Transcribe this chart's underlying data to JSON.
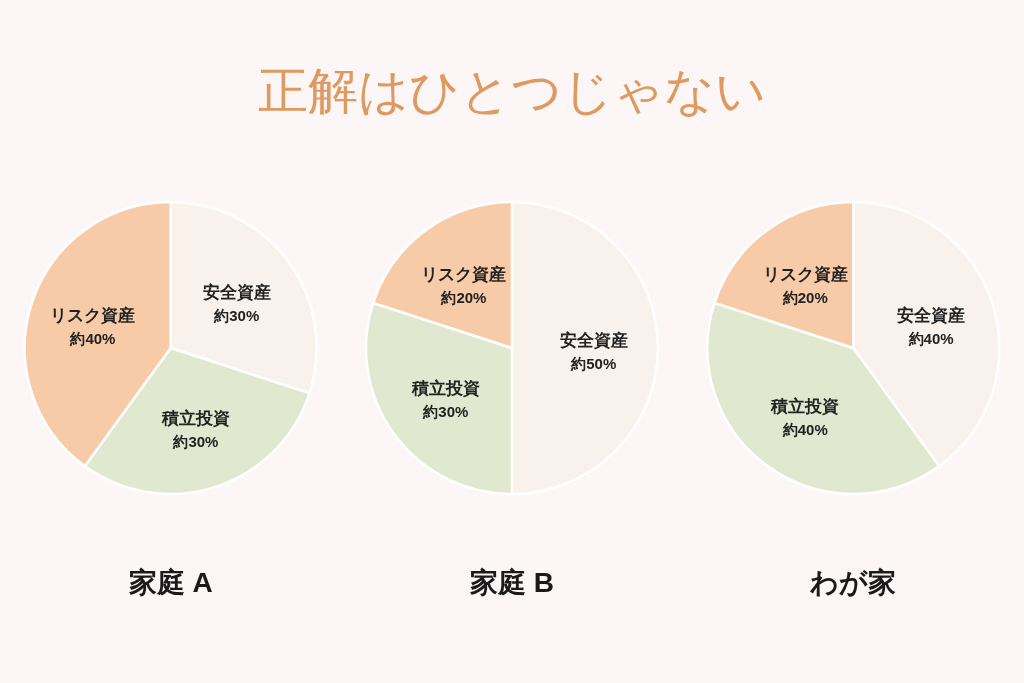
{
  "chart_data": [
    {
      "type": "pie",
      "title": "家庭 A",
      "annotations": [
        "正解はひとつじゃない"
      ],
      "categories": [
        "安全資産",
        "積立投資",
        "リスク資産"
      ],
      "values": [
        30,
        30,
        40
      ],
      "value_labels": [
        "約30%",
        "約30%",
        "約40%"
      ],
      "colors": [
        "#f8f1ec",
        "#e0e9cf",
        "#f8cba8"
      ]
    },
    {
      "type": "pie",
      "title": "家庭 B",
      "categories": [
        "安全資産",
        "積立投資",
        "リスク資産"
      ],
      "values": [
        50,
        30,
        20
      ],
      "value_labels": [
        "約50%",
        "約30%",
        "約20%"
      ],
      "colors": [
        "#f8f1ec",
        "#e0e9cf",
        "#f8cba8"
      ]
    },
    {
      "type": "pie",
      "title": "わが家",
      "categories": [
        "安全資産",
        "積立投資",
        "リスク資産"
      ],
      "values": [
        40,
        40,
        20
      ],
      "value_labels": [
        "約40%",
        "約40%",
        "約20%"
      ],
      "colors": [
        "#f8f1ec",
        "#e0e9cf",
        "#f8cba8"
      ]
    }
  ]
}
